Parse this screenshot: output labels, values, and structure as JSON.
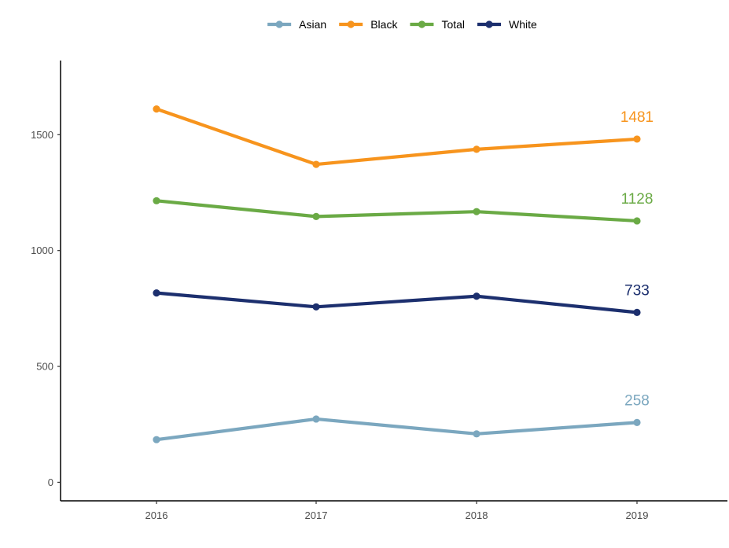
{
  "chart_data": {
    "type": "line",
    "x": [
      "2016",
      "2017",
      "2018",
      "2019"
    ],
    "ylim": [
      -80,
      1820
    ],
    "yticks": [
      0,
      500,
      1000,
      1500
    ],
    "ytick_labels": [
      "0",
      "500",
      "1000",
      "1500"
    ],
    "grid": false,
    "legend_position": "top",
    "series": [
      {
        "name": "Asian",
        "color": "#7ba7bf",
        "values": [
          184,
          273,
          209,
          258
        ],
        "end_label": "258"
      },
      {
        "name": "Black",
        "color": "#f7941d",
        "values": [
          1611,
          1372,
          1437,
          1481
        ],
        "end_label": "1481"
      },
      {
        "name": "Total",
        "color": "#6aaa45",
        "values": [
          1215,
          1147,
          1168,
          1128
        ],
        "end_label": "1128"
      },
      {
        "name": "White",
        "color": "#1c2f6e",
        "values": [
          817,
          757,
          803,
          733
        ],
        "end_label": "733"
      }
    ]
  }
}
